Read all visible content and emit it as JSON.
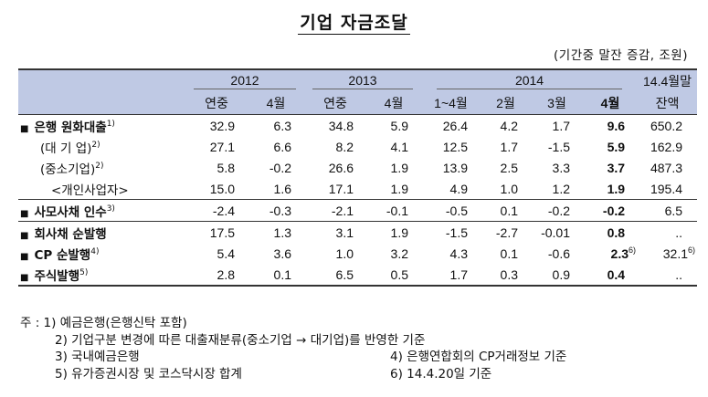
{
  "title": "기업 자금조달",
  "unit": "(기간중 말잔 증감, 조원)",
  "header": {
    "years": [
      "2012",
      "2013",
      "2014"
    ],
    "last_col": [
      "14.4월말",
      "잔액"
    ],
    "sub": [
      "연중",
      "4월",
      "연중",
      "4월",
      "1~4월",
      "2월",
      "3월",
      "4월"
    ]
  },
  "rows": [
    {
      "label": "은행 원화대출",
      "sup": "1)",
      "bullet": "■",
      "values": [
        "32.9",
        "6.3",
        "34.8",
        "5.9",
        "26.4",
        "4.2",
        "1.7",
        "9.6",
        "650.2"
      ],
      "v_sup": [
        "",
        "",
        "",
        "",
        "",
        "",
        "",
        "",
        ""
      ]
    },
    {
      "label": "(대 기 업)",
      "sup": "2)",
      "bullet": "",
      "values": [
        "27.1",
        "6.6",
        "8.2",
        "4.1",
        "12.5",
        "1.7",
        "-1.5",
        "5.9",
        "162.9"
      ],
      "v_sup": [
        "",
        "",
        "",
        "",
        "",
        "",
        "",
        "",
        ""
      ]
    },
    {
      "label": "(중소기업)",
      "sup": "2)",
      "bullet": "",
      "values": [
        "5.8",
        "-0.2",
        "26.6",
        "1.9",
        "13.9",
        "2.5",
        "3.3",
        "3.7",
        "487.3"
      ],
      "v_sup": [
        "",
        "",
        "",
        "",
        "",
        "",
        "",
        "",
        ""
      ]
    },
    {
      "label": "<개인사업자>",
      "sup": "",
      "bullet": "",
      "values": [
        "15.0",
        "1.6",
        "17.1",
        "1.9",
        "4.9",
        "1.0",
        "1.2",
        "1.9",
        "195.4"
      ],
      "v_sup": [
        "",
        "",
        "",
        "",
        "",
        "",
        "",
        "",
        ""
      ]
    },
    {
      "label": "사모사채 인수",
      "sup": "3)",
      "bullet": "■",
      "values": [
        "-2.4",
        "-0.3",
        "-2.1",
        "-0.1",
        "-0.5",
        "0.1",
        "-0.2",
        "-0.2",
        "6.5"
      ],
      "v_sup": [
        "",
        "",
        "",
        "",
        "",
        "",
        "",
        "",
        ""
      ]
    },
    {
      "label": "회사채 순발행",
      "sup": "",
      "bullet": "■",
      "values": [
        "17.5",
        "1.3",
        "3.1",
        "1.9",
        "-1.5",
        "-2.7",
        "-0.01",
        "0.8",
        ".."
      ],
      "v_sup": [
        "",
        "",
        "",
        "",
        "",
        "",
        "",
        "",
        ""
      ]
    },
    {
      "label": "CP 순발행",
      "sup": "4)",
      "bullet": "■",
      "values": [
        "5.4",
        "3.6",
        "1.0",
        "3.2",
        "4.3",
        "0.1",
        "-0.6",
        "2.3",
        "32.1"
      ],
      "v_sup": [
        "",
        "",
        "",
        "",
        "",
        "",
        "",
        "6)",
        "6)"
      ]
    },
    {
      "label": "주식발행",
      "sup": "5)",
      "bullet": "■",
      "values": [
        "2.8",
        "0.1",
        "6.5",
        "0.5",
        "1.7",
        "0.3",
        "0.9",
        "0.4",
        ".."
      ],
      "v_sup": [
        "",
        "",
        "",
        "",
        "",
        "",
        "",
        "",
        ""
      ]
    }
  ],
  "notes": {
    "n1": "주 : 1) 예금은행(은행신탁 포함)",
    "n2": "2) 기업구분 변경에 따른 대출재분류(중소기업 → 대기업)를 반영한 기준",
    "n3": "3) 국내예금은행",
    "n4": "4) 은행연합회의 CP거래정보 기준",
    "n5": "5) 유가증권시장 및 코스닥시장 합계",
    "n6": "6) 14.4.20일 기준"
  }
}
